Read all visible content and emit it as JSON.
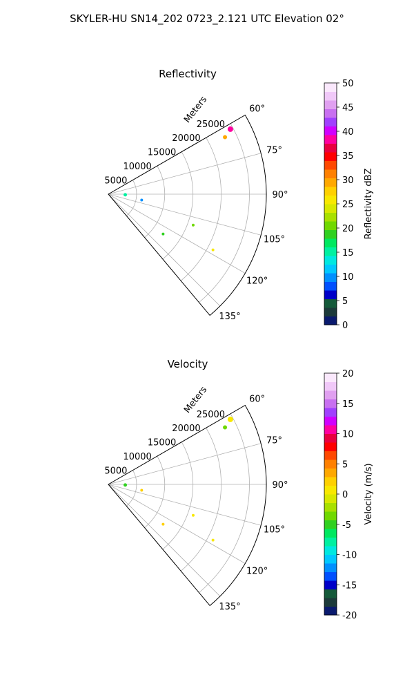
{
  "figure": {
    "suptitle": "SKYLER-HU  SN14_202  0723_2.121 UTC Elevation 02°"
  },
  "chart_data": [
    {
      "type": "polar-sector",
      "title": "Reflectivity",
      "range_label": "Meters",
      "range_ticks": [
        5000,
        10000,
        15000,
        20000,
        25000
      ],
      "range_max": 28000,
      "theta_ticks": [
        "60°",
        "75°",
        "90°",
        "105°",
        "120°",
        "135°"
      ],
      "theta_range_deg": [
        60,
        140
      ],
      "colorbar": {
        "label": "Reflectivity dBZ",
        "min": 0,
        "max": 50,
        "ticks": [
          0,
          5,
          10,
          15,
          20,
          25,
          30,
          35,
          40,
          45,
          50
        ],
        "colors": [
          "#0a1a6e",
          "#1c3a3a",
          "#155a3a",
          "#0000c8",
          "#0050ff",
          "#0090ff",
          "#00c8ff",
          "#00e8e0",
          "#00f0a0",
          "#00e860",
          "#30d020",
          "#70d800",
          "#a8e000",
          "#d8e800",
          "#f8e800",
          "#ffd000",
          "#ffa800",
          "#ff8000",
          "#ff4800",
          "#ff0000",
          "#e80040",
          "#ff00a0",
          "#d000ff",
          "#a040ff",
          "#c870f0",
          "#e0a0f0",
          "#f0c8f8",
          "#fae8fc"
        ]
      },
      "echoes": [
        {
          "theta": 62,
          "r": 24500,
          "value": 38,
          "size": 4.0
        },
        {
          "theta": 64,
          "r": 23000,
          "value": 30,
          "size": 3.0
        },
        {
          "theta": 92,
          "r": 3000,
          "value": 15,
          "size": 2.5
        },
        {
          "theta": 100,
          "r": 6000,
          "value": 10,
          "size": 2.0
        },
        {
          "theta": 110,
          "r": 16000,
          "value": 20,
          "size": 2.0
        },
        {
          "theta": 118,
          "r": 21000,
          "value": 25,
          "size": 2.0
        },
        {
          "theta": 126,
          "r": 12000,
          "value": 18,
          "size": 2.0
        }
      ]
    },
    {
      "type": "polar-sector",
      "title": "Velocity",
      "range_label": "Meters",
      "range_ticks": [
        5000,
        10000,
        15000,
        20000,
        25000
      ],
      "range_max": 28000,
      "theta_ticks": [
        "60°",
        "75°",
        "90°",
        "105°",
        "120°",
        "135°"
      ],
      "theta_range_deg": [
        60,
        140
      ],
      "colorbar": {
        "label": "Velocity (m/s)",
        "min": -20,
        "max": 20,
        "ticks": [
          -20,
          -15,
          -10,
          -5,
          0,
          5,
          10,
          15,
          20
        ],
        "colors": [
          "#0a1a6e",
          "#1c3a3a",
          "#155a3a",
          "#0000c8",
          "#0050ff",
          "#0090ff",
          "#00c8ff",
          "#00e8e0",
          "#00f0a0",
          "#00e860",
          "#30d020",
          "#70d800",
          "#a8e000",
          "#d8e800",
          "#f8e800",
          "#ffd000",
          "#ffa800",
          "#ff8000",
          "#ff4800",
          "#ff0000",
          "#e80040",
          "#ff00a0",
          "#d000ff",
          "#a040ff",
          "#c870f0",
          "#e0a0f0",
          "#f0c8f8",
          "#fae8fc"
        ]
      },
      "echoes": [
        {
          "theta": 62,
          "r": 24500,
          "value": 0,
          "size": 4.0
        },
        {
          "theta": 64,
          "r": 23000,
          "value": -3,
          "size": 3.0
        },
        {
          "theta": 92,
          "r": 3000,
          "value": -5,
          "size": 2.5
        },
        {
          "theta": 100,
          "r": 6000,
          "value": 2,
          "size": 2.0
        },
        {
          "theta": 110,
          "r": 16000,
          "value": 0,
          "size": 2.0
        },
        {
          "theta": 118,
          "r": 21000,
          "value": 1,
          "size": 2.0
        },
        {
          "theta": 126,
          "r": 12000,
          "value": 2,
          "size": 2.0
        }
      ]
    }
  ]
}
